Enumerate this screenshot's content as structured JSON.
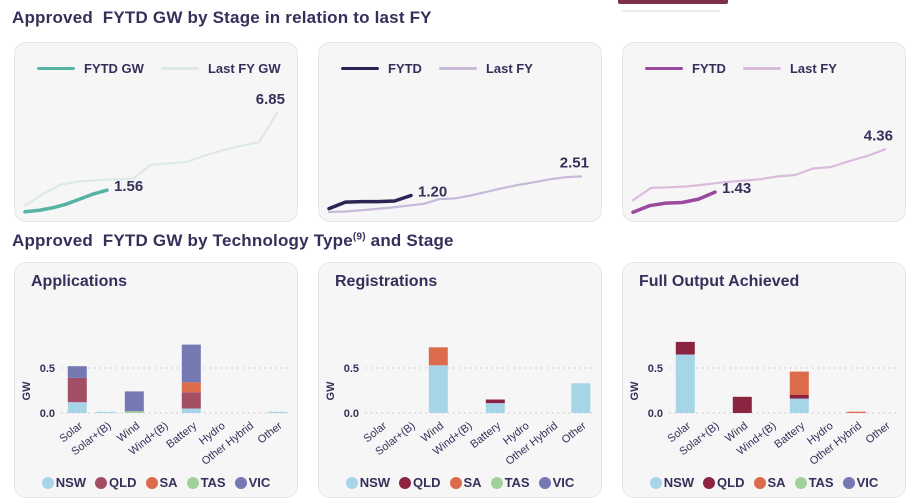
{
  "sections": {
    "stage": {
      "title": "Approved  FYTD GW by Stage in relation to last FY"
    },
    "tech": {
      "title_pre": "Approved  FYTD GW by Technology Type",
      "title_sup": "(9)",
      "title_post": " and Stage"
    }
  },
  "theme": {
    "title_color": "#35305a",
    "panel_background": "#f7f6f7",
    "panel_border": "#e7e5e8",
    "gridline_color": "#cfcbd3",
    "remnant_bar_color": "#7e2f49"
  },
  "chart_data": [
    {
      "type": "line",
      "panel": "stage-chart-1",
      "legend_position": "top-left",
      "ylim": [
        0,
        7.3
      ],
      "series": [
        {
          "name": "FYTD GW",
          "color": "#56b3a4",
          "end_label": "1.56",
          "values": [
            0.08,
            0.18,
            0.35,
            0.6,
            0.95,
            1.3,
            1.56
          ]
        },
        {
          "name": "Last FY GW",
          "color": "#dce9e4",
          "end_label": "6.85",
          "values": [
            0.5,
            1.3,
            1.95,
            2.15,
            2.25,
            2.3,
            2.35,
            3.3,
            3.4,
            3.5,
            3.95,
            4.3,
            4.6,
            4.85,
            6.85
          ]
        }
      ]
    },
    {
      "type": "line",
      "panel": "stage-chart-2",
      "legend_position": "top-left",
      "ylim": [
        0,
        7.3
      ],
      "series": [
        {
          "name": "FYTD",
          "color": "#2b2454",
          "end_label": "1.20",
          "values": [
            0.3,
            0.75,
            0.78,
            0.78,
            0.82,
            1.2
          ]
        },
        {
          "name": "Last FY",
          "color": "#c7bad8",
          "end_label": "2.51",
          "values": [
            0.07,
            0.1,
            0.18,
            0.28,
            0.38,
            0.5,
            0.62,
            0.95,
            1.0,
            1.2,
            1.45,
            1.7,
            1.92,
            2.1,
            2.3,
            2.45,
            2.51
          ]
        }
      ]
    },
    {
      "type": "line",
      "panel": "stage-chart-3",
      "legend_position": "top-left",
      "ylim": [
        0,
        7.3
      ],
      "series": [
        {
          "name": "FYTD",
          "color": "#9c4a9d",
          "end_label": "1.43",
          "values": [
            0.05,
            0.5,
            0.68,
            0.72,
            0.95,
            1.43
          ]
        },
        {
          "name": "Last FY",
          "color": "#d9bcdc",
          "end_label": "4.36",
          "values": [
            0.88,
            1.72,
            1.76,
            1.82,
            1.95,
            2.1,
            2.2,
            2.3,
            2.5,
            2.6,
            3.05,
            3.15,
            3.55,
            3.9,
            4.36
          ]
        }
      ]
    },
    {
      "type": "bar",
      "title": "Applications",
      "ylabel": "GW",
      "ytick_labels": [
        "0.5",
        "0.0"
      ],
      "ylim": [
        0,
        0.85
      ],
      "grid": "dotted",
      "legend_position": "bottom",
      "categories": [
        "Solar",
        "Solar+(B)",
        "Wind",
        "Wind+(B)",
        "Battery",
        "Hydro",
        "Other Hybrid",
        "Other"
      ],
      "series": [
        {
          "name": "NSW",
          "color": "#a7d5e8",
          "values": [
            0.12,
            0.01,
            0,
            0,
            0.05,
            0,
            0,
            0.01
          ]
        },
        {
          "name": "QLD",
          "color": "#a24e64",
          "values": [
            0.27,
            0,
            0,
            0,
            0.18,
            0,
            0,
            0
          ]
        },
        {
          "name": "SA",
          "color": "#dc6b4c",
          "values": [
            0,
            0,
            0,
            0,
            0.11,
            0,
            0,
            0
          ]
        },
        {
          "name": "TAS",
          "color": "#a2d09d",
          "values": [
            0,
            0,
            0.02,
            0,
            0,
            0,
            0,
            0
          ]
        },
        {
          "name": "VIC",
          "color": "#7579b1",
          "values": [
            0.13,
            0,
            0.22,
            0,
            0.42,
            0,
            0,
            0
          ]
        }
      ]
    },
    {
      "type": "bar",
      "title": "Registrations",
      "ylabel": "GW",
      "ytick_labels": [
        "0.5",
        "0.0"
      ],
      "ylim": [
        0,
        0.85
      ],
      "grid": "dotted",
      "legend_position": "bottom",
      "categories": [
        "Solar",
        "Solar+(B)",
        "Wind",
        "Wind+(B)",
        "Battery",
        "Hydro",
        "Other Hybrid",
        "Other"
      ],
      "series": [
        {
          "name": "NSW",
          "color": "#a7d5e8",
          "values": [
            0,
            0,
            0.53,
            0,
            0.11,
            0,
            0,
            0.33
          ]
        },
        {
          "name": "QLD",
          "color": "#8b2440",
          "values": [
            0,
            0,
            0,
            0,
            0.04,
            0,
            0,
            0
          ]
        },
        {
          "name": "SA",
          "color": "#dc6b4c",
          "values": [
            0,
            0,
            0.2,
            0,
            0,
            0,
            0,
            0
          ]
        },
        {
          "name": "TAS",
          "color": "#a2d09d",
          "values": [
            0,
            0,
            0,
            0,
            0,
            0,
            0,
            0
          ]
        },
        {
          "name": "VIC",
          "color": "#7579b1",
          "values": [
            0,
            0,
            0,
            0,
            0,
            0,
            0,
            0
          ]
        }
      ]
    },
    {
      "type": "bar",
      "title": "Full Output Achieved",
      "ylabel": "GW",
      "ytick_labels": [
        "0.5",
        "0.0"
      ],
      "ylim": [
        0,
        0.85
      ],
      "grid": "dotted",
      "legend_position": "bottom",
      "categories": [
        "Solar",
        "Solar+(B)",
        "Wind",
        "Wind+(B)",
        "Battery",
        "Hydro",
        "Other Hybrid",
        "Other"
      ],
      "series": [
        {
          "name": "NSW",
          "color": "#a7d5e8",
          "values": [
            0.65,
            0,
            0,
            0,
            0.16,
            0,
            0,
            0
          ]
        },
        {
          "name": "QLD",
          "color": "#8b2440",
          "values": [
            0.14,
            0,
            0.18,
            0,
            0.04,
            0,
            0,
            0
          ]
        },
        {
          "name": "SA",
          "color": "#dc6b4c",
          "values": [
            0,
            0,
            0,
            0,
            0.26,
            0,
            0.015,
            0
          ]
        },
        {
          "name": "TAS",
          "color": "#a2d09d",
          "values": [
            0,
            0,
            0,
            0,
            0,
            0,
            0,
            0
          ]
        },
        {
          "name": "VIC",
          "color": "#7579b1",
          "values": [
            0,
            0,
            0,
            0,
            0,
            0,
            0,
            0
          ]
        }
      ]
    }
  ]
}
